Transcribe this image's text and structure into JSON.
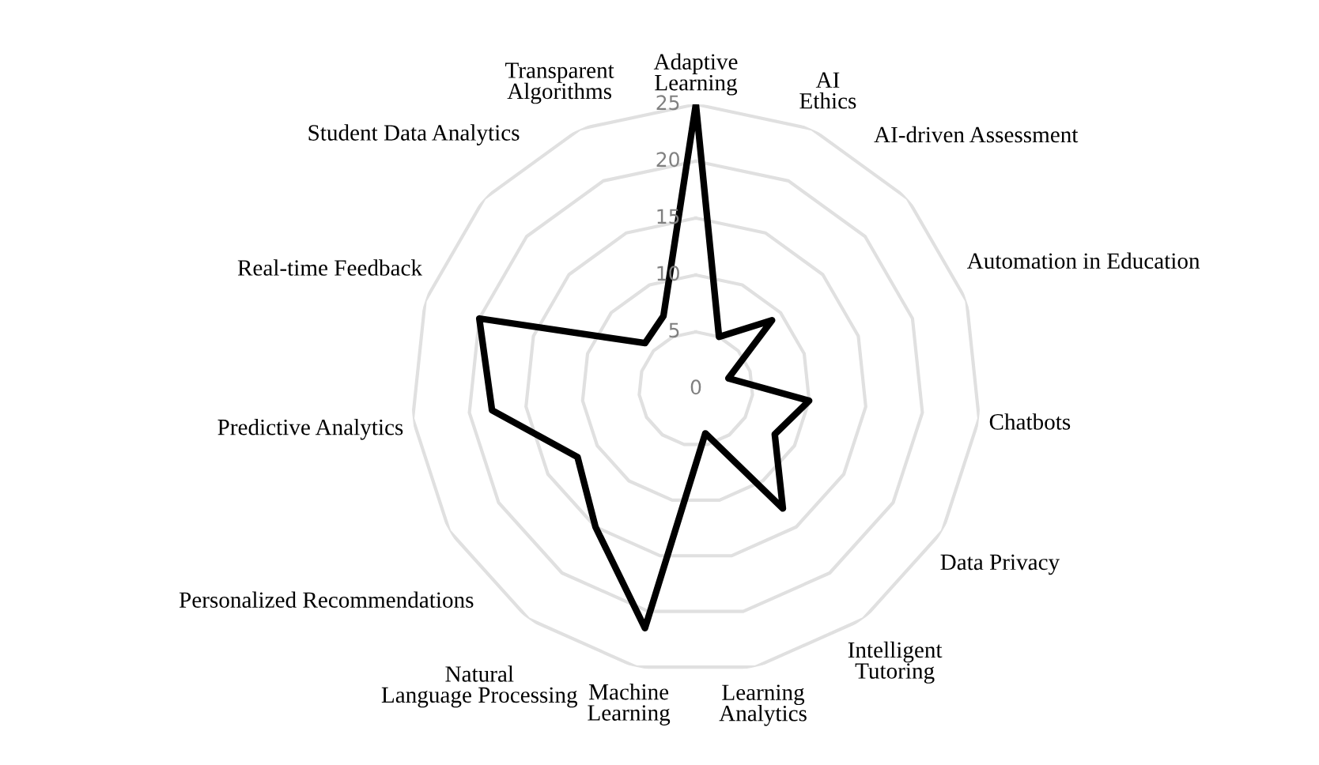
{
  "chart_data": {
    "type": "radar",
    "categories": [
      "Adaptive Learning",
      "AI Ethics",
      "AI-driven Assessment",
      "Automation in Education",
      "Chatbots",
      "Data Privacy",
      "Intelligent Tutoring",
      "Learning Analytics",
      "Machine Learning",
      "Natural Language Processing",
      "Personalized Recommendations",
      "Predictive Analytics",
      "Real-time Feedback",
      "Student Data Analytics",
      "Transparent Algorithms"
    ],
    "series": [
      {
        "color": "#000000",
        "values": [
          25,
          5,
          9,
          3,
          10,
          8,
          13,
          4,
          21.5,
          15,
          12,
          18,
          20,
          6,
          7
        ]
      }
    ],
    "ylim": [
      0,
      25
    ],
    "yticks": [
      0,
      5,
      10,
      15,
      20,
      25
    ],
    "grid": true,
    "marker": "none",
    "line_style": "solid"
  }
}
